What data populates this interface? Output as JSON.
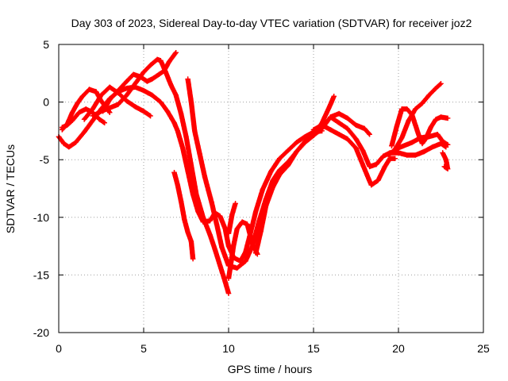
{
  "chart_data": {
    "type": "scatter",
    "title": "Day 303 of 2023, Sidereal Day-to-day VTEC variation (SDTVAR) for receiver joz2",
    "xlabel": "GPS time / hours",
    "ylabel": "SDTVAR / TECUs",
    "xlim": [
      0,
      25
    ],
    "ylim": [
      -20,
      5
    ],
    "xticks": [
      0,
      5,
      10,
      15,
      20,
      25
    ],
    "yticks": [
      -20,
      -15,
      -10,
      -5,
      0,
      5
    ],
    "xtick_labels": [
      "0",
      "5",
      "10",
      "15",
      "20",
      "25"
    ],
    "ytick_labels": [
      "-20",
      "-15",
      "-10",
      "-5",
      "0",
      "5"
    ],
    "grid": true,
    "legend": "none",
    "marker": "plus",
    "color": "#ff0000",
    "series": [
      {
        "points": [
          [
            0.0,
            -3.0
          ],
          [
            0.3,
            -3.6
          ],
          [
            0.6,
            -3.9
          ],
          [
            1.0,
            -3.5
          ],
          [
            1.5,
            -2.6
          ],
          [
            2.0,
            -1.6
          ],
          [
            2.5,
            -0.6
          ],
          [
            3.0,
            0.3
          ],
          [
            3.5,
            0.9
          ],
          [
            4.0,
            1.2
          ],
          [
            4.5,
            1.3
          ],
          [
            5.0,
            1.0
          ],
          [
            5.5,
            0.6
          ],
          [
            6.0,
            0.0
          ],
          [
            6.4,
            -0.8
          ],
          [
            6.8,
            -1.8
          ],
          [
            7.0,
            -2.5
          ],
          [
            7.3,
            -4.0
          ],
          [
            7.6,
            -6.0
          ],
          [
            7.9,
            -8.0
          ],
          [
            8.2,
            -9.5
          ],
          [
            8.5,
            -10.4
          ],
          [
            8.9,
            -10.3
          ],
          [
            9.2,
            -9.6
          ],
          [
            9.5,
            -9.9
          ],
          [
            9.8,
            -11.0
          ],
          [
            10.0,
            -12.5
          ],
          [
            10.3,
            -13.5
          ],
          [
            10.7,
            -13.8
          ],
          [
            11.0,
            -13.0
          ],
          [
            11.3,
            -11.3
          ],
          [
            11.6,
            -9.5
          ],
          [
            12.0,
            -7.6
          ],
          [
            12.5,
            -6.0
          ],
          [
            13.0,
            -4.9
          ],
          [
            13.5,
            -4.2
          ],
          [
            14.0,
            -3.5
          ],
          [
            14.5,
            -3.0
          ],
          [
            15.0,
            -2.6
          ],
          [
            15.5,
            -2.5
          ]
        ]
      },
      {
        "points": [
          [
            0.2,
            -2.4
          ],
          [
            0.5,
            -1.9
          ],
          [
            0.8,
            -0.9
          ],
          [
            1.1,
            -0.1
          ],
          [
            1.4,
            0.5
          ],
          [
            1.8,
            1.1
          ],
          [
            2.2,
            0.9
          ],
          [
            2.5,
            0.1
          ],
          [
            2.8,
            -0.5
          ],
          [
            3.0,
            -0.9
          ]
        ]
      },
      {
        "points": [
          [
            0.2,
            -2.2
          ],
          [
            0.5,
            -2.0
          ],
          [
            0.8,
            -1.6
          ],
          [
            1.2,
            -0.9
          ],
          [
            1.6,
            -0.6
          ],
          [
            2.0,
            -0.9
          ],
          [
            2.4,
            -1.5
          ],
          [
            2.7,
            -1.8
          ]
        ]
      },
      {
        "points": [
          [
            1.5,
            -1.5
          ],
          [
            2.0,
            -0.6
          ],
          [
            2.5,
            0.6
          ],
          [
            3.0,
            1.3
          ],
          [
            3.5,
            0.8
          ],
          [
            4.0,
            0.1
          ],
          [
            4.5,
            -0.4
          ],
          [
            5.0,
            -0.8
          ],
          [
            5.4,
            -1.2
          ]
        ]
      },
      {
        "points": [
          [
            2.0,
            -1.2
          ],
          [
            2.5,
            -0.8
          ],
          [
            3.0,
            -0.5
          ],
          [
            3.5,
            -0.2
          ],
          [
            4.0,
            0.6
          ],
          [
            4.5,
            1.6
          ],
          [
            5.0,
            2.6
          ],
          [
            5.4,
            3.2
          ],
          [
            5.8,
            3.7
          ],
          [
            6.0,
            3.6
          ],
          [
            6.3,
            2.6
          ],
          [
            6.6,
            1.5
          ],
          [
            6.9,
            0.6
          ],
          [
            7.2,
            -1.0
          ],
          [
            7.5,
            -3.0
          ],
          [
            7.8,
            -5.5
          ],
          [
            8.1,
            -8.0
          ],
          [
            8.5,
            -10.0
          ],
          [
            8.9,
            -11.5
          ],
          [
            9.2,
            -12.8
          ],
          [
            9.5,
            -14.2
          ],
          [
            9.8,
            -15.6
          ],
          [
            10.0,
            -16.6
          ]
        ]
      },
      {
        "points": [
          [
            2.6,
            -0.8
          ],
          [
            3.0,
            0.2
          ],
          [
            3.5,
            1.0
          ],
          [
            4.0,
            1.8
          ],
          [
            4.4,
            2.4
          ],
          [
            4.8,
            2.2
          ],
          [
            5.2,
            1.8
          ],
          [
            5.5,
            2.0
          ],
          [
            5.9,
            2.4
          ],
          [
            6.2,
            2.7
          ],
          [
            6.5,
            3.5
          ],
          [
            6.9,
            4.3
          ]
        ]
      },
      {
        "points": [
          [
            6.8,
            -6.1
          ],
          [
            7.0,
            -7.2
          ],
          [
            7.2,
            -8.6
          ],
          [
            7.4,
            -10.2
          ],
          [
            7.6,
            -11.3
          ],
          [
            7.8,
            -12.1
          ],
          [
            7.9,
            -13.6
          ]
        ]
      },
      {
        "points": [
          [
            7.6,
            2.0
          ],
          [
            7.8,
            0.0
          ],
          [
            8.0,
            -2.5
          ],
          [
            8.3,
            -4.5
          ],
          [
            8.6,
            -6.5
          ],
          [
            9.0,
            -8.7
          ],
          [
            9.3,
            -10.6
          ],
          [
            9.6,
            -12.6
          ],
          [
            10.0,
            -14.2
          ],
          [
            10.5,
            -14.4
          ],
          [
            11.0,
            -13.8
          ],
          [
            11.4,
            -12.5
          ],
          [
            11.8,
            -10.3
          ],
          [
            12.2,
            -8.4
          ],
          [
            12.6,
            -6.8
          ],
          [
            13.0,
            -5.9
          ],
          [
            13.5,
            -5.2
          ],
          [
            14.0,
            -4.3
          ],
          [
            14.5,
            -3.5
          ],
          [
            15.0,
            -2.9
          ],
          [
            15.5,
            -1.8
          ],
          [
            16.0,
            -0.2
          ],
          [
            16.2,
            0.5
          ]
        ]
      },
      {
        "points": [
          [
            10.0,
            -15.3
          ],
          [
            10.3,
            -12.4
          ],
          [
            10.5,
            -11.0
          ],
          [
            10.8,
            -10.4
          ],
          [
            11.1,
            -10.6
          ],
          [
            11.4,
            -12.3
          ],
          [
            11.7,
            -13.2
          ]
        ]
      },
      {
        "points": [
          [
            10.0,
            -11.4
          ],
          [
            10.2,
            -9.8
          ],
          [
            10.4,
            -8.8
          ]
        ]
      },
      {
        "points": [
          [
            11.6,
            -13.1
          ],
          [
            11.9,
            -11.2
          ],
          [
            12.2,
            -9.0
          ],
          [
            12.6,
            -7.4
          ],
          [
            13.0,
            -6.3
          ],
          [
            13.5,
            -5.5
          ],
          [
            14.0,
            -4.3
          ],
          [
            14.5,
            -3.4
          ],
          [
            15.0,
            -2.9
          ],
          [
            15.5,
            -2.3
          ],
          [
            16.0,
            -1.3
          ],
          [
            16.5,
            -1.0
          ],
          [
            17.0,
            -1.4
          ],
          [
            17.5,
            -2.0
          ],
          [
            18.0,
            -2.3
          ],
          [
            18.3,
            -2.8
          ]
        ]
      },
      {
        "points": [
          [
            15.0,
            -2.4
          ],
          [
            15.5,
            -2.0
          ],
          [
            16.0,
            -2.4
          ],
          [
            16.5,
            -2.8
          ],
          [
            17.0,
            -3.2
          ],
          [
            17.5,
            -4.0
          ],
          [
            18.0,
            -5.8
          ],
          [
            18.4,
            -7.2
          ],
          [
            18.8,
            -6.8
          ],
          [
            19.2,
            -5.6
          ],
          [
            19.5,
            -4.9
          ],
          [
            19.8,
            -4.9
          ]
        ]
      },
      {
        "points": [
          [
            16.0,
            -1.3
          ],
          [
            16.5,
            -1.8
          ],
          [
            17.0,
            -2.3
          ],
          [
            17.5,
            -3.2
          ],
          [
            17.9,
            -4.2
          ],
          [
            18.3,
            -5.6
          ],
          [
            18.7,
            -5.4
          ],
          [
            19.1,
            -4.7
          ],
          [
            19.5,
            -4.4
          ],
          [
            20.0,
            -4.4
          ],
          [
            20.5,
            -4.6
          ],
          [
            21.0,
            -4.6
          ],
          [
            21.5,
            -4.3
          ],
          [
            22.0,
            -3.9
          ],
          [
            22.5,
            -3.6
          ],
          [
            22.8,
            -3.9
          ]
        ]
      },
      {
        "points": [
          [
            19.6,
            -3.8
          ],
          [
            19.9,
            -2.1
          ],
          [
            20.2,
            -0.6
          ],
          [
            20.5,
            -0.6
          ],
          [
            20.8,
            -1.1
          ],
          [
            21.0,
            -2.0
          ],
          [
            21.2,
            -2.9
          ],
          [
            21.4,
            -3.6
          ],
          [
            21.6,
            -3.2
          ],
          [
            21.9,
            -2.2
          ],
          [
            22.2,
            -1.5
          ],
          [
            22.5,
            -1.3
          ],
          [
            22.9,
            -1.4
          ]
        ]
      },
      {
        "points": [
          [
            19.8,
            -4.1
          ],
          [
            20.2,
            -3.1
          ],
          [
            20.6,
            -1.6
          ],
          [
            21.0,
            -0.6
          ],
          [
            21.4,
            -0.1
          ],
          [
            21.8,
            0.6
          ],
          [
            22.2,
            1.2
          ],
          [
            22.5,
            1.6
          ]
        ]
      },
      {
        "points": [
          [
            19.4,
            -4.6
          ],
          [
            19.8,
            -4.1
          ],
          [
            20.3,
            -3.8
          ],
          [
            20.8,
            -3.5
          ],
          [
            21.3,
            -3.1
          ],
          [
            21.8,
            -3.0
          ],
          [
            22.3,
            -2.8
          ],
          [
            22.6,
            -3.4
          ],
          [
            22.9,
            -3.7
          ]
        ]
      },
      {
        "points": [
          [
            22.6,
            -4.4
          ],
          [
            22.8,
            -5.0
          ],
          [
            22.9,
            -5.8
          ],
          [
            22.7,
            -5.6
          ]
        ]
      }
    ]
  }
}
